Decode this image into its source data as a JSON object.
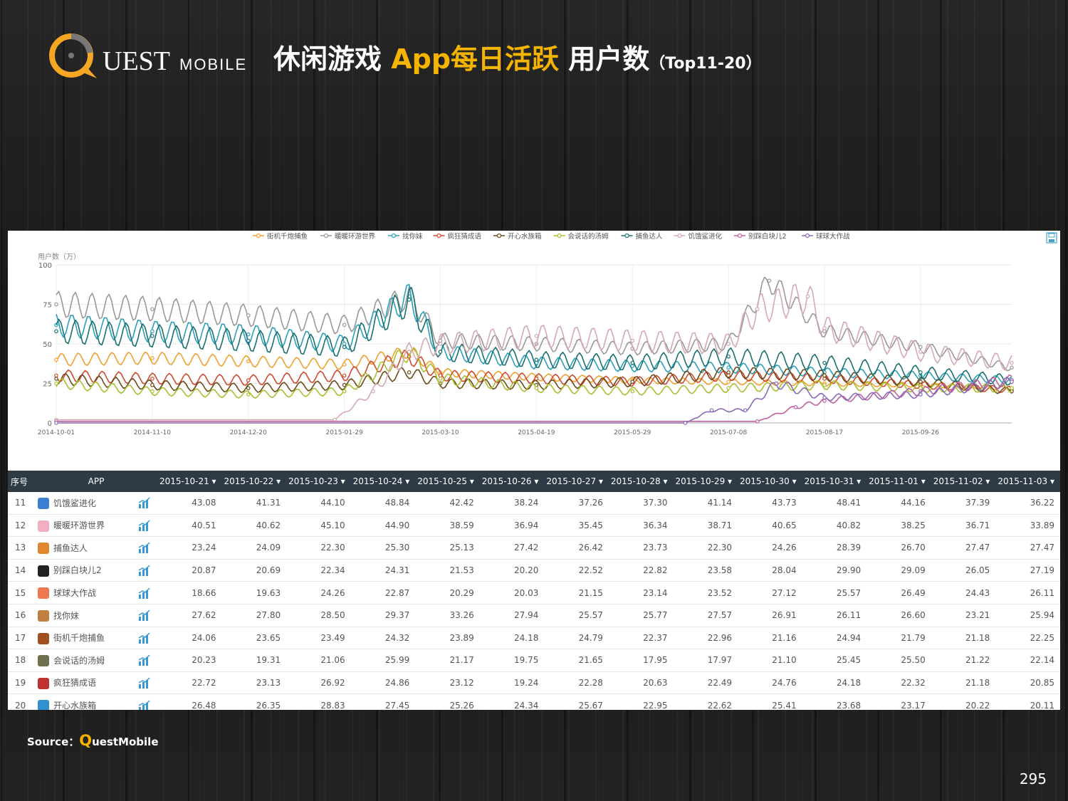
{
  "header": {
    "logo_text_1": "UEST",
    "logo_text_2": "MOBILE",
    "title_part1": "休闲游戏 ",
    "title_part2": "App每日活跃",
    "title_part3": " 用户数",
    "title_part4": "（Top11-20）"
  },
  "colors": {
    "accent": "#f5b400",
    "table_header": "#2e3a46"
  },
  "chart_data": {
    "type": "line",
    "ylabel": "用户数（万）",
    "ylim": [
      0,
      100
    ],
    "y_ticks": [
      0,
      25,
      50,
      75,
      100
    ],
    "x_range": [
      "2014-10-01",
      "2015-11-03"
    ],
    "x_ticks": [
      "2014-10-01",
      "2014-11-10",
      "2014-12-20",
      "2015-01-29",
      "2015-03-10",
      "2015-04-19",
      "2015-05-29",
      "2015-07-08",
      "2015-08-17",
      "2015-09-26"
    ],
    "legend_position": "top",
    "series": [
      {
        "name": "街机千炮捕鱼",
        "color": "#f0a030",
        "style": "line-dot",
        "x": [
          "2014-10-01",
          "2014-11-10",
          "2014-12-20",
          "2015-01-29",
          "2015-02-25",
          "2015-03-10",
          "2015-04-19",
          "2015-05-29",
          "2015-07-08",
          "2015-08-17",
          "2015-09-26",
          "2015-11-03"
        ],
        "y": [
          40,
          41,
          39,
          37,
          45,
          32,
          29,
          27,
          26,
          25,
          24,
          22
        ]
      },
      {
        "name": "暖暖环游世界",
        "color": "#999999",
        "style": "line-dot",
        "x": [
          "2014-10-01",
          "2014-11-10",
          "2014-12-20",
          "2015-01-29",
          "2015-02-25",
          "2015-03-10",
          "2015-04-19",
          "2015-05-29",
          "2015-07-08",
          "2015-07-25",
          "2015-08-17",
          "2015-09-26",
          "2015-11-03"
        ],
        "y": [
          75,
          72,
          68,
          62,
          80,
          52,
          50,
          47,
          50,
          90,
          58,
          48,
          35
        ]
      },
      {
        "name": "找你妹",
        "color": "#2aa0b8",
        "style": "line-dot",
        "x": [
          "2014-10-01",
          "2014-11-10",
          "2014-12-20",
          "2015-01-29",
          "2015-02-25",
          "2015-03-10",
          "2015-04-19",
          "2015-05-29",
          "2015-07-08",
          "2015-08-17",
          "2015-09-26",
          "2015-11-03"
        ],
        "y": [
          62,
          58,
          56,
          50,
          80,
          45,
          38,
          36,
          35,
          32,
          30,
          27
        ]
      },
      {
        "name": "疯狂猜成语",
        "color": "#d0492e",
        "style": "line-dot",
        "x": [
          "2014-10-01",
          "2014-11-10",
          "2014-12-20",
          "2015-01-29",
          "2015-02-25",
          "2015-03-10",
          "2015-04-19",
          "2015-05-29",
          "2015-07-08",
          "2015-08-17",
          "2015-09-26",
          "2015-11-03"
        ],
        "y": [
          30,
          28,
          27,
          30,
          42,
          30,
          28,
          26,
          30,
          28,
          24,
          21
        ]
      },
      {
        "name": "开心水族箱",
        "color": "#6a4a1a",
        "style": "line-dot",
        "x": [
          "2014-10-01",
          "2014-11-10",
          "2014-12-20",
          "2015-01-29",
          "2015-02-25",
          "2015-03-10",
          "2015-04-19",
          "2015-05-29",
          "2015-07-08",
          "2015-08-17",
          "2015-09-26",
          "2015-11-03"
        ],
        "y": [
          28,
          24,
          22,
          24,
          32,
          25,
          24,
          26,
          32,
          30,
          26,
          20
        ]
      },
      {
        "name": "会说话的汤姆",
        "color": "#a8c030",
        "style": "line-dot",
        "x": [
          "2014-10-01",
          "2014-11-10",
          "2014-12-20",
          "2015-01-29",
          "2015-02-25",
          "2015-03-10",
          "2015-04-19",
          "2015-05-29",
          "2015-07-08",
          "2015-08-17",
          "2015-09-26",
          "2015-11-03"
        ],
        "y": [
          25,
          20,
          18,
          20,
          45,
          28,
          22,
          20,
          22,
          24,
          22,
          22
        ]
      },
      {
        "name": "捕鱼达人",
        "color": "#1a7070",
        "style": "line-dot",
        "x": [
          "2014-10-01",
          "2014-11-10",
          "2014-12-20",
          "2015-01-29",
          "2015-02-25",
          "2015-03-10",
          "2015-04-19",
          "2015-05-29",
          "2015-07-08",
          "2015-08-17",
          "2015-09-26",
          "2015-11-03"
        ],
        "y": [
          58,
          55,
          52,
          48,
          78,
          45,
          40,
          38,
          42,
          38,
          32,
          27
        ]
      },
      {
        "name": "饥饿鲨进化",
        "color": "#d4aab0",
        "style": "line-dot",
        "x": [
          "2014-10-01",
          "2015-01-25",
          "2015-02-10",
          "2015-02-25",
          "2015-03-10",
          "2015-04-19",
          "2015-05-29",
          "2015-07-08",
          "2015-07-20",
          "2015-08-10",
          "2015-08-17",
          "2015-09-26",
          "2015-11-03"
        ],
        "y": [
          2,
          2,
          20,
          45,
          50,
          55,
          52,
          50,
          72,
          80,
          60,
          45,
          38
        ]
      },
      {
        "name": "别踩白块儿2",
        "color": "#c060a0",
        "style": "line-dot",
        "x": [
          "2014-10-01",
          "2015-07-20",
          "2015-08-05",
          "2015-08-17",
          "2015-09-26",
          "2015-11-03"
        ],
        "y": [
          1,
          1,
          10,
          14,
          20,
          27
        ]
      },
      {
        "name": "球球大作战",
        "color": "#8a6ab8",
        "style": "line-dot",
        "x": [
          "2014-10-01",
          "2015-06-20",
          "2015-07-01",
          "2015-07-15",
          "2015-07-28",
          "2015-08-17",
          "2015-09-26",
          "2015-11-03"
        ],
        "y": [
          0,
          0,
          8,
          8,
          25,
          16,
          18,
          26
        ]
      }
    ]
  },
  "table": {
    "headers": {
      "idx": "序号",
      "app": "APP"
    },
    "dates": [
      "2015-10-21",
      "2015-10-22",
      "2015-10-23",
      "2015-10-24",
      "2015-10-25",
      "2015-10-26",
      "2015-10-27",
      "2015-10-28",
      "2015-10-29",
      "2015-10-30",
      "2015-10-31",
      "2015-11-01",
      "2015-11-02",
      "2015-11-03"
    ],
    "sort_glyph": "▾",
    "rows": [
      {
        "idx": "11",
        "name": "饥饿鲨进化",
        "icon_color": "#3a7fd0",
        "values": [
          "43.08",
          "41.31",
          "44.10",
          "48.84",
          "42.42",
          "38.24",
          "37.26",
          "37.30",
          "41.14",
          "43.73",
          "48.41",
          "44.16",
          "37.39",
          "36.22"
        ]
      },
      {
        "idx": "12",
        "name": "暖暖环游世界",
        "icon_color": "#f0b0c0",
        "values": [
          "40.51",
          "40.62",
          "45.10",
          "44.90",
          "38.59",
          "36.94",
          "35.45",
          "36.34",
          "38.71",
          "40.65",
          "40.82",
          "38.25",
          "36.71",
          "33.89"
        ]
      },
      {
        "idx": "13",
        "name": "捕鱼达人",
        "icon_color": "#e08830",
        "values": [
          "23.24",
          "24.09",
          "22.30",
          "25.30",
          "25.13",
          "27.42",
          "26.42",
          "23.73",
          "22.30",
          "24.26",
          "28.39",
          "26.70",
          "27.47",
          "27.47"
        ]
      },
      {
        "idx": "14",
        "name": "别踩白块儿2",
        "icon_color": "#222222",
        "values": [
          "20.87",
          "20.69",
          "22.34",
          "24.31",
          "21.53",
          "20.20",
          "22.52",
          "22.82",
          "23.58",
          "28.04",
          "29.90",
          "29.09",
          "26.05",
          "27.19"
        ]
      },
      {
        "idx": "15",
        "name": "球球大作战",
        "icon_color": "#f07850",
        "values": [
          "18.66",
          "19.63",
          "24.26",
          "22.87",
          "20.29",
          "20.03",
          "21.15",
          "23.14",
          "23.52",
          "27.12",
          "25.57",
          "26.49",
          "24.43",
          "26.11"
        ]
      },
      {
        "idx": "16",
        "name": "找你妹",
        "icon_color": "#c08040",
        "values": [
          "27.62",
          "27.80",
          "28.50",
          "29.37",
          "33.26",
          "27.94",
          "25.57",
          "25.77",
          "27.57",
          "26.91",
          "26.11",
          "26.60",
          "23.21",
          "25.94"
        ]
      },
      {
        "idx": "17",
        "name": "街机千炮捕鱼",
        "icon_color": "#a05020",
        "values": [
          "24.06",
          "23.65",
          "23.49",
          "24.32",
          "23.89",
          "24.18",
          "24.79",
          "22.37",
          "22.96",
          "21.16",
          "24.94",
          "21.79",
          "21.18",
          "22.25"
        ]
      },
      {
        "idx": "18",
        "name": "会说话的汤姆",
        "icon_color": "#707050",
        "values": [
          "20.23",
          "19.31",
          "21.06",
          "25.99",
          "21.17",
          "19.75",
          "21.65",
          "17.95",
          "17.97",
          "21.10",
          "25.45",
          "25.50",
          "21.22",
          "22.14"
        ]
      },
      {
        "idx": "19",
        "name": "疯狂猜成语",
        "icon_color": "#c03030",
        "values": [
          "22.72",
          "23.13",
          "26.92",
          "24.86",
          "23.12",
          "19.24",
          "22.28",
          "20.63",
          "22.49",
          "24.76",
          "24.18",
          "22.32",
          "21.18",
          "20.85"
        ]
      },
      {
        "idx": "20",
        "name": "开心水族箱",
        "icon_color": "#3090d0",
        "values": [
          "26.48",
          "26.35",
          "28.83",
          "27.45",
          "25.26",
          "24.34",
          "25.67",
          "22.95",
          "22.62",
          "25.41",
          "23.68",
          "23.17",
          "20.22",
          "20.11"
        ]
      }
    ]
  },
  "footer": {
    "source_label": "Source：",
    "source_q": "Q",
    "source_rest": "uestMobile",
    "page_number": "295"
  }
}
